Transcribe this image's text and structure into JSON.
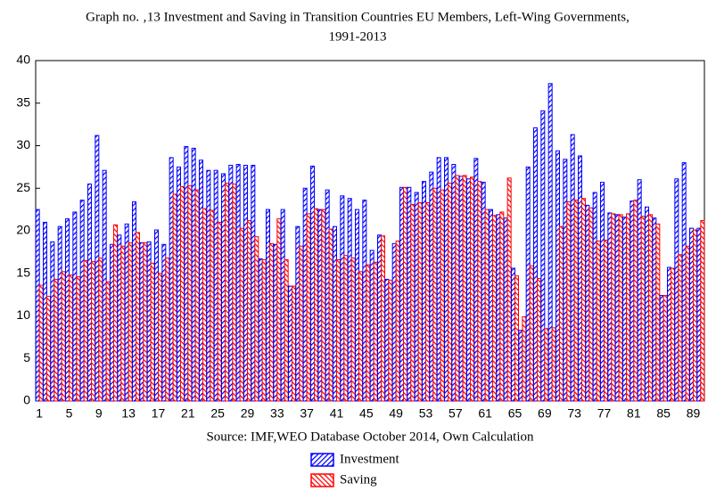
{
  "chart_data": {
    "type": "bar",
    "title": [
      "Graph no. ‚13 Investment and Saving in Transition Countries EU Members, Left-Wing Governments,",
      "1991-2013"
    ],
    "x_label": "Source: IMF,WEO Database October 2014, Own Calculation",
    "categories": [
      1,
      null,
      null,
      null,
      5,
      null,
      null,
      null,
      9,
      null,
      null,
      null,
      13,
      null,
      null,
      null,
      17,
      null,
      null,
      null,
      21,
      null,
      null,
      null,
      25,
      null,
      null,
      null,
      29,
      null,
      null,
      null,
      33,
      null,
      null,
      null,
      37,
      null,
      null,
      null,
      41,
      null,
      null,
      null,
      45,
      null,
      null,
      null,
      49,
      null,
      null,
      null,
      53,
      null,
      null,
      null,
      57,
      null,
      null,
      null,
      61,
      null,
      null,
      null,
      65,
      null,
      null,
      null,
      69,
      null,
      null,
      null,
      73,
      null,
      null,
      null,
      77,
      null,
      null,
      null,
      81,
      null,
      null,
      null,
      85,
      null,
      null,
      null,
      89,
      null
    ],
    "series": [
      {
        "name": "Investment",
        "color": "#0000ff",
        "values": [
          22.5,
          21,
          18.7,
          20.5,
          21.4,
          22.2,
          23.6,
          25.5,
          31.2,
          27.1,
          18.4,
          19.5,
          20.8,
          23.4,
          18.6,
          18.7,
          20.1,
          18.4,
          28.6,
          27.5,
          29.9,
          29.7,
          28.3,
          27.1,
          27.1,
          26.7,
          27.7,
          27.8,
          27.7,
          27.7,
          16.7,
          22.5,
          18.4,
          22.5,
          13.5,
          20.5,
          25,
          27.6,
          22.5,
          24.8,
          20.5,
          24.1,
          23.8,
          22.5,
          23.6,
          17.7,
          19.5,
          14.3,
          18.5,
          25.1,
          25.1,
          24.5,
          25.8,
          26.9,
          28.6,
          28.6,
          27.8,
          26.4,
          26.1,
          28.5,
          25.7,
          22.5,
          21.9,
          21.5,
          15.6,
          8.3,
          27.5,
          32.1,
          34.1,
          37.3,
          29.4,
          28.4,
          31.3,
          28.8,
          23,
          24.5,
          25.7,
          22.1,
          21.9,
          21.6,
          23.5,
          26,
          22.8,
          21.5,
          12.4,
          15.7,
          26.1,
          28,
          20.3,
          20.3
        ]
      },
      {
        "name": "Saving",
        "color": "#ff0000",
        "values": [
          13.6,
          12.3,
          14.3,
          15.2,
          14.8,
          14.6,
          16.5,
          16.4,
          16.8,
          14,
          20.7,
          18.2,
          18.6,
          19.8,
          18.6,
          16.2,
          15,
          16.8,
          24.3,
          25.2,
          25.3,
          24.8,
          22.6,
          22.4,
          21,
          25.6,
          25.5,
          20.3,
          21.2,
          19.3,
          16.6,
          18.5,
          21.4,
          16.6,
          13.5,
          18.2,
          22,
          22.6,
          22.5,
          20.2,
          16.6,
          17.1,
          16.8,
          15.2,
          16,
          16.3,
          19.4,
          14.2,
          18.8,
          25.1,
          23.1,
          23.3,
          23.3,
          25,
          24.8,
          25.6,
          26.5,
          26.5,
          26.3,
          25.8,
          22.5,
          21.8,
          22.2,
          26.2,
          14.7,
          9.9,
          15.9,
          14.4,
          8.5,
          8.6,
          20.5,
          23.4,
          23.6,
          23.8,
          22.7,
          18.8,
          18.9,
          22,
          21.9,
          22,
          23.6,
          21.7,
          21.9,
          20.8,
          12.4,
          15.6,
          17.2,
          18.2,
          20.1,
          21.2
        ]
      }
    ],
    "ylim": [
      0,
      40
    ],
    "yticks": [
      0,
      5,
      10,
      15,
      20,
      25,
      30,
      35,
      40
    ],
    "grid": false,
    "legend": "bottom"
  }
}
